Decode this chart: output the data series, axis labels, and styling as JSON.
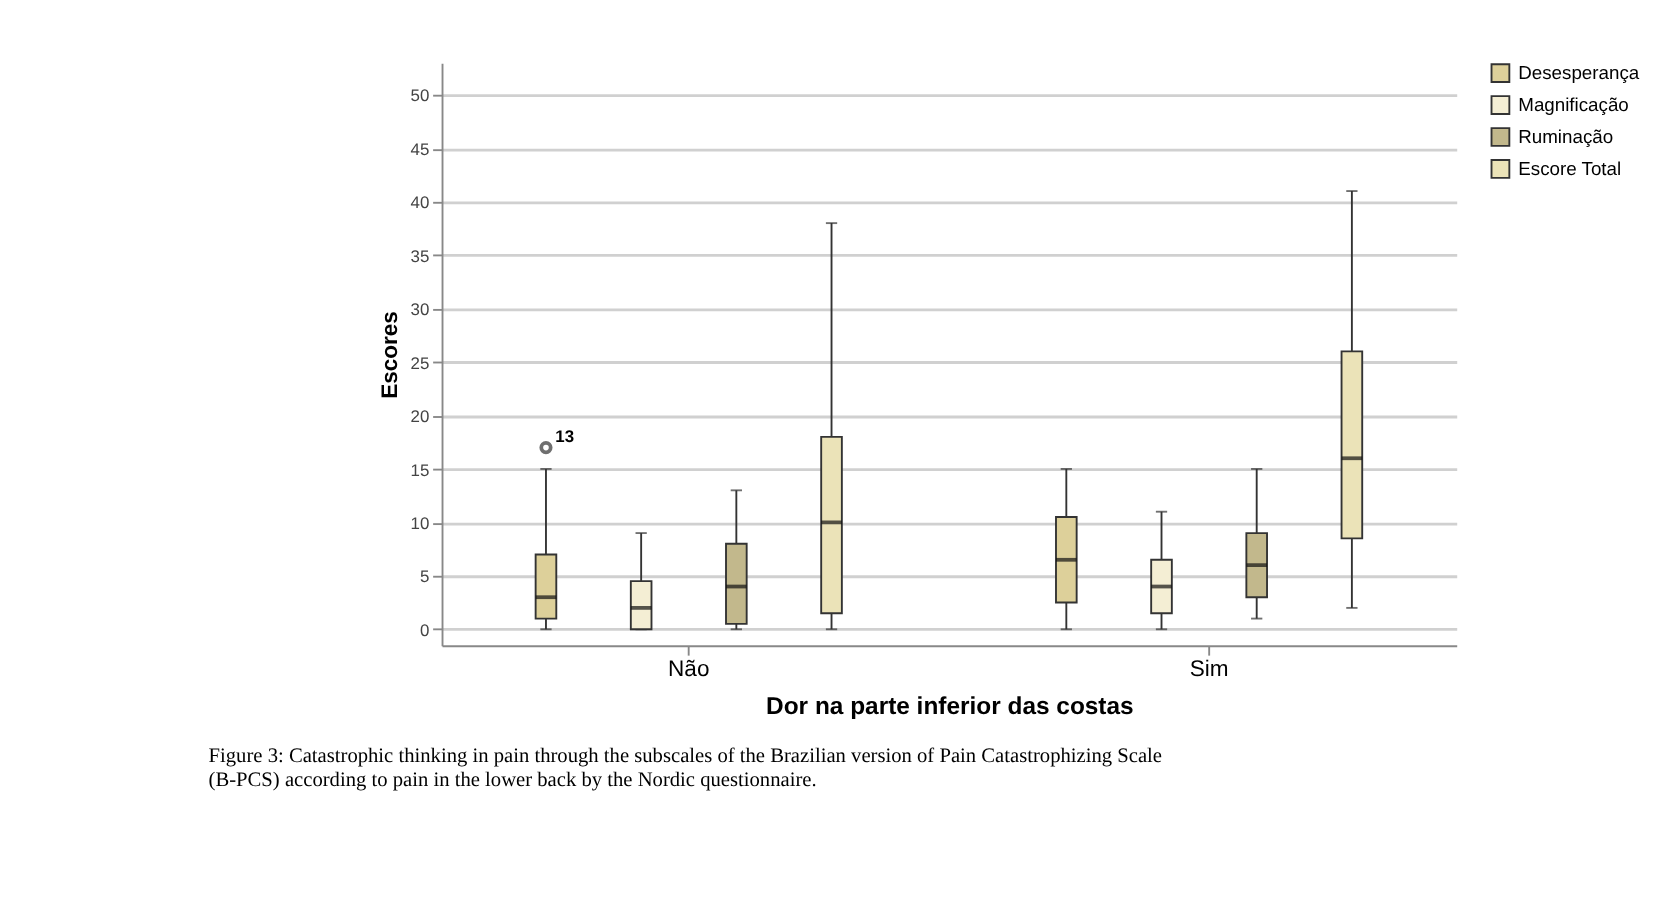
{
  "chart_data": {
    "type": "box",
    "xlabel": "Dor na parte inferior das costas",
    "ylabel": "Escores",
    "categories": [
      "Não",
      "Sim"
    ],
    "ylim": [
      -1.5,
      53
    ],
    "yticks": [
      0,
      5,
      10,
      15,
      20,
      25,
      30,
      35,
      40,
      45,
      50
    ],
    "grid": "y",
    "legend": "top right",
    "series": [
      {
        "name": "Desesperança",
        "color": "#ddd09a",
        "boxes": [
          {
            "low": 0,
            "q1": 1,
            "median": 3,
            "q3": 7,
            "high": 15,
            "outliers": [
              17
            ]
          },
          {
            "low": 0,
            "q1": 2.5,
            "median": 6.5,
            "q3": 10.5,
            "high": 15
          }
        ]
      },
      {
        "name": "Magnificação",
        "color": "#f4eed4",
        "boxes": [
          {
            "low": 0,
            "q1": 0,
            "median": 2,
            "q3": 4.5,
            "high": 9
          },
          {
            "low": 0,
            "q1": 1.5,
            "median": 4,
            "q3": 6.5,
            "high": 11
          }
        ]
      },
      {
        "name": "Ruminação",
        "color": "#c2b88c",
        "boxes": [
          {
            "low": 0,
            "q1": 0.5,
            "median": 4,
            "q3": 8,
            "high": 13
          },
          {
            "low": 1,
            "q1": 3,
            "median": 6,
            "q3": 9,
            "high": 15
          }
        ]
      },
      {
        "name": "Escore Total",
        "color": "#ebe3b8",
        "boxes": [
          {
            "low": 0,
            "q1": 1.5,
            "median": 10,
            "q3": 18,
            "high": 38
          },
          {
            "low": 2,
            "q1": 8.5,
            "median": 16,
            "q3": 26,
            "high": 41
          }
        ]
      }
    ],
    "annotations": [
      "13",
      "Figure 3: Catastrophic thinking in pain through the subscales of the Brazilian version of Pain Catastrophizing Scale (B-PCS) according to pain in the lower back by the Nordic questionnaire."
    ]
  }
}
